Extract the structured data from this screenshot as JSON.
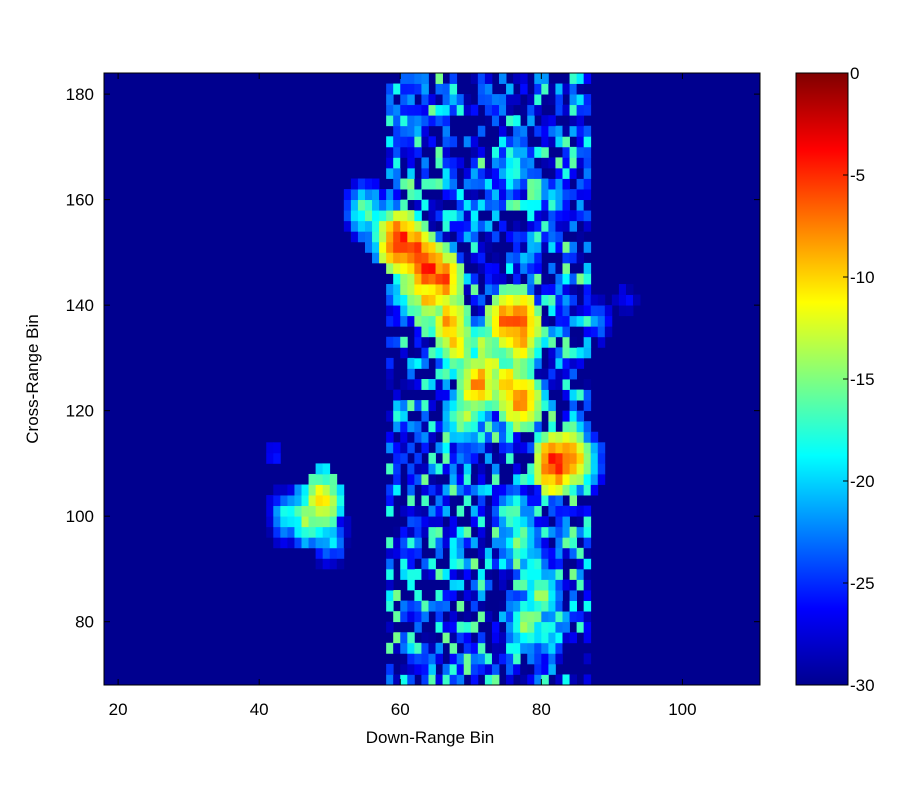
{
  "chart_data": {
    "type": "heatmap",
    "title": "",
    "xlabel": "Down-Range Bin",
    "ylabel": "Cross-Range Bin",
    "xlim": [
      18,
      111
    ],
    "ylim": [
      68,
      184
    ],
    "xticks": [
      20,
      40,
      60,
      80,
      100
    ],
    "yticks": [
      80,
      100,
      120,
      140,
      160,
      180
    ],
    "colorbar": {
      "colormap": "jet",
      "range": [
        -30,
        0
      ],
      "ticks": [
        0,
        -5,
        -10,
        -15,
        -20,
        -25,
        -30
      ]
    },
    "background_level": -30,
    "noise_band": {
      "x_range": [
        58,
        87
      ],
      "y_range": [
        68,
        184
      ]
    },
    "hotspots": [
      {
        "x": 60,
        "y": 152,
        "value": -1
      },
      {
        "x": 62,
        "y": 150,
        "value": -2
      },
      {
        "x": 64,
        "y": 147,
        "value": -1
      },
      {
        "x": 66,
        "y": 145,
        "value": -3
      },
      {
        "x": 62,
        "y": 144,
        "value": -8
      },
      {
        "x": 58,
        "y": 154,
        "value": -10
      },
      {
        "x": 55,
        "y": 158,
        "value": -13
      },
      {
        "x": 64,
        "y": 141,
        "value": -7
      },
      {
        "x": 67,
        "y": 137,
        "value": -5
      },
      {
        "x": 68,
        "y": 133,
        "value": -7
      },
      {
        "x": 72,
        "y": 132,
        "value": -10
      },
      {
        "x": 75,
        "y": 137,
        "value": -3
      },
      {
        "x": 77,
        "y": 137,
        "value": -2
      },
      {
        "x": 77,
        "y": 133,
        "value": -5
      },
      {
        "x": 73,
        "y": 128,
        "value": -9
      },
      {
        "x": 71,
        "y": 125,
        "value": -4
      },
      {
        "x": 75,
        "y": 125,
        "value": -6
      },
      {
        "x": 77,
        "y": 122,
        "value": -3
      },
      {
        "x": 69,
        "y": 119,
        "value": -10
      },
      {
        "x": 82,
        "y": 110,
        "value": -1
      },
      {
        "x": 84,
        "y": 111,
        "value": -3
      },
      {
        "x": 86,
        "y": 110,
        "value": -12
      },
      {
        "x": 49,
        "y": 103,
        "value": -6
      },
      {
        "x": 47,
        "y": 100,
        "value": -10
      },
      {
        "x": 44,
        "y": 100,
        "value": -15
      },
      {
        "x": 50,
        "y": 96,
        "value": -16
      },
      {
        "x": 76,
        "y": 100,
        "value": -13
      },
      {
        "x": 77,
        "y": 95,
        "value": -12
      },
      {
        "x": 79,
        "y": 90,
        "value": -14
      },
      {
        "x": 80,
        "y": 85,
        "value": -12
      },
      {
        "x": 78,
        "y": 80,
        "value": -11
      },
      {
        "x": 81,
        "y": 78,
        "value": -15
      },
      {
        "x": 76,
        "y": 166,
        "value": -14
      },
      {
        "x": 82,
        "y": 160,
        "value": -17
      },
      {
        "x": 88,
        "y": 137,
        "value": -19
      },
      {
        "x": 92,
        "y": 141,
        "value": -22
      },
      {
        "x": 42,
        "y": 112,
        "value": -23
      }
    ]
  }
}
